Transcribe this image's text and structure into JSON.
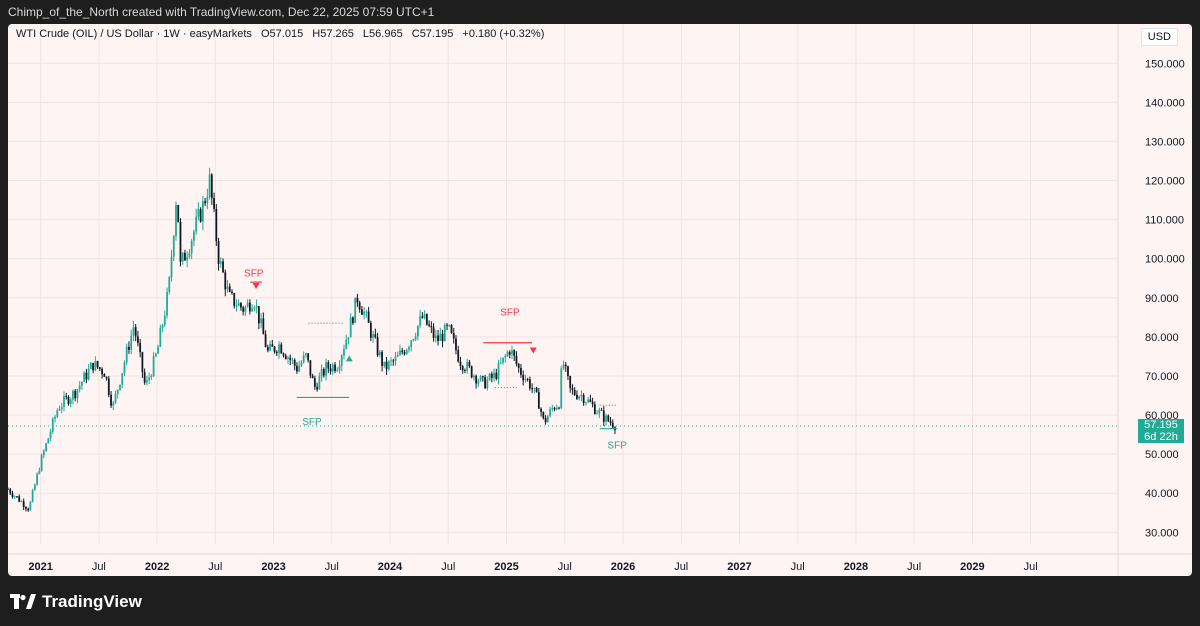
{
  "header": {
    "credit": "Chimp_of_the_North created with TradingView.com, Dec 22, 2025 07:59 UTC+1"
  },
  "legend": {
    "symbol": "WTI Crude (OIL) / US Dollar · 1W · easyMarkets",
    "open": "O57.015",
    "high": "H57.265",
    "low": "L56.965",
    "close": "C57.195",
    "change": "+0.180 (+0.32%)"
  },
  "currency": "USD",
  "price_tag": {
    "price": "57.195",
    "countdown": "6d 22h"
  },
  "footer": {
    "brand": "TradingView"
  },
  "colors": {
    "up": "#22ab94",
    "down": "#131722",
    "bearish_marker": "#f23645",
    "bullish_marker": "#22ab94",
    "background": "#fdf4f3"
  },
  "chart_data": {
    "type": "candlestick",
    "interval": "1W",
    "x_axis": {
      "start": 2020.72,
      "end": 2030.25,
      "ticks": [
        "2021",
        "Jul",
        "2022",
        "Jul",
        "2023",
        "Jul",
        "2024",
        "Jul",
        "2025",
        "Jul",
        "2026",
        "Jul",
        "2027",
        "Jul",
        "2028",
        "Jul",
        "2029",
        "Jul"
      ],
      "tick_values": [
        2021.0,
        2021.5,
        2022.0,
        2022.5,
        2023.0,
        2023.5,
        2024.0,
        2024.5,
        2025.0,
        2025.5,
        2026.0,
        2026.5,
        2027.0,
        2027.5,
        2028.0,
        2028.5,
        2029.0,
        2029.5
      ]
    },
    "y_axis": {
      "min": 27,
      "max": 158,
      "ticks": [
        30,
        40,
        50,
        60,
        70,
        80,
        90,
        100,
        110,
        120,
        130,
        140,
        150
      ],
      "tick_labels": [
        "30.000",
        "40.000",
        "50.000",
        "60.000",
        "70.000",
        "80.000",
        "90.000",
        "100.000",
        "110.000",
        "120.000",
        "130.000",
        "140.000",
        "150.000"
      ],
      "position": "right"
    },
    "last_price": 57.195,
    "path": [
      [
        2020.72,
        41
      ],
      [
        2020.9,
        36
      ],
      [
        2021.0,
        48
      ],
      [
        2021.15,
        62
      ],
      [
        2021.3,
        66
      ],
      [
        2021.45,
        73
      ],
      [
        2021.55,
        71
      ],
      [
        2021.62,
        62
      ],
      [
        2021.8,
        83
      ],
      [
        2021.9,
        67
      ],
      [
        2022.0,
        76
      ],
      [
        2022.1,
        92
      ],
      [
        2022.17,
        118
      ],
      [
        2022.2,
        98
      ],
      [
        2022.28,
        104
      ],
      [
        2022.4,
        114
      ],
      [
        2022.45,
        120
      ],
      [
        2022.53,
        100
      ],
      [
        2022.62,
        90
      ],
      [
        2022.75,
        87
      ],
      [
        2022.83,
        90
      ],
      [
        2022.95,
        76
      ],
      [
        2023.05,
        78
      ],
      [
        2023.2,
        72
      ],
      [
        2023.28,
        75
      ],
      [
        2023.35,
        67
      ],
      [
        2023.45,
        72
      ],
      [
        2023.55,
        73
      ],
      [
        2023.65,
        82
      ],
      [
        2023.72,
        90
      ],
      [
        2023.78,
        86
      ],
      [
        2023.85,
        80
      ],
      [
        2023.95,
        72
      ],
      [
        2024.05,
        74
      ],
      [
        2024.15,
        78
      ],
      [
        2024.28,
        85
      ],
      [
        2024.4,
        79
      ],
      [
        2024.5,
        82
      ],
      [
        2024.6,
        74
      ],
      [
        2024.7,
        71
      ],
      [
        2024.8,
        68
      ],
      [
        2024.9,
        70
      ],
      [
        2025.03,
        77
      ],
      [
        2025.1,
        72
      ],
      [
        2025.2,
        68
      ],
      [
        2025.28,
        63
      ],
      [
        2025.32,
        58
      ],
      [
        2025.4,
        62
      ],
      [
        2025.45,
        63
      ],
      [
        2025.48,
        74
      ],
      [
        2025.55,
        66
      ],
      [
        2025.65,
        65
      ],
      [
        2025.75,
        62
      ],
      [
        2025.85,
        59
      ],
      [
        2025.95,
        57.2
      ]
    ],
    "annotations": [
      {
        "text": "SFP",
        "kind": "bearish",
        "x": 2022.83,
        "y": 96.5,
        "level": 94,
        "x_start": 2022.8,
        "x_end": 2022.9
      },
      {
        "text": "SFP",
        "kind": "bullish",
        "x": 2023.33,
        "y": 58.5,
        "level": 64.5,
        "x_start": 2023.2,
        "x_end": 2023.65
      },
      {
        "text": "SFP",
        "kind": "bearish",
        "x": 2025.03,
        "y": 86.5,
        "level": 78.5,
        "x_start": 2024.8,
        "x_end": 2025.22
      },
      {
        "text": "SFP",
        "kind": "bullish",
        "x": 2025.95,
        "y": 52.5,
        "level": 56.5,
        "x_start": 2025.8,
        "x_end": 2025.95
      }
    ],
    "dotted_levels": [
      {
        "y": 83.5,
        "x_start": 2023.3,
        "x_end": 2023.6
      },
      {
        "y": 67,
        "x_start": 2024.9,
        "x_end": 2025.1
      },
      {
        "y": 62.5,
        "x_start": 2025.8,
        "x_end": 2025.95
      }
    ],
    "markers": [
      {
        "kind": "bull-triangle",
        "x": 2023.65,
        "y": 74.5
      },
      {
        "kind": "bear-triangle",
        "x": 2025.23,
        "y": 76.5
      },
      {
        "kind": "bear-triangle",
        "x": 2022.85,
        "y": 93
      }
    ]
  }
}
